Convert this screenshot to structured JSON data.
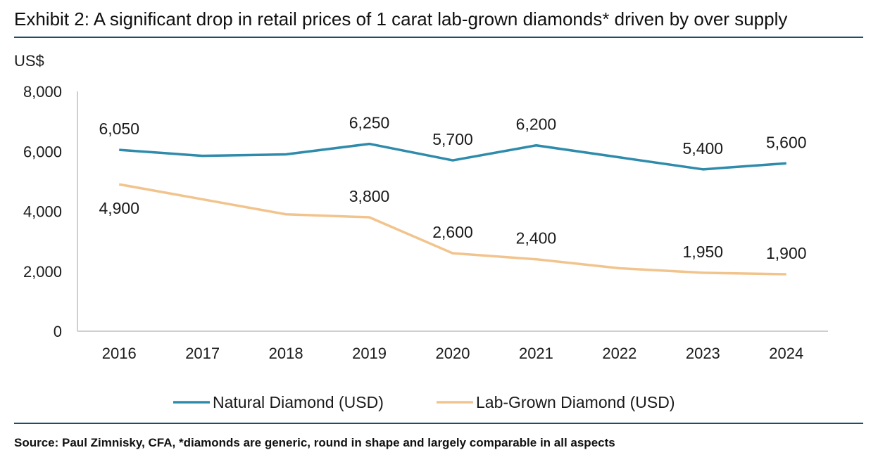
{
  "title": "Exhibit 2: A significant drop in retail prices of 1 carat lab-grown diamonds* driven by over supply",
  "source": "Source: Paul Zimnisky, CFA, *diamonds are generic, round in shape and largely comparable in all aspects",
  "colors": {
    "natural": "#2e8bab",
    "lab": "#f2c48d",
    "rule": "#1d4e63",
    "axis": "#bfbfbf"
  },
  "chart_data": {
    "type": "line",
    "title": "Exhibit 2: A significant drop in retail prices of 1 carat lab-grown diamonds* driven by over supply",
    "xlabel": "",
    "ylabel": "US$",
    "ylim": [
      0,
      8000
    ],
    "yticks": [
      "0",
      "2,000",
      "4,000",
      "6,000",
      "8,000"
    ],
    "yticks_values": [
      0,
      2000,
      4000,
      6000,
      8000
    ],
    "categories": [
      "2016",
      "2017",
      "2018",
      "2019",
      "2020",
      "2021",
      "2022",
      "2023",
      "2024"
    ],
    "grid": false,
    "legend": "bottom",
    "series": [
      {
        "name": "Natural Diamond (USD)",
        "color": "#2e8bab",
        "values": [
          6050,
          5850,
          5900,
          6250,
          5700,
          6200,
          5800,
          5400,
          5600
        ],
        "labels": [
          "6,050",
          "",
          "",
          "6,250",
          "5,700",
          "6,200",
          "",
          "5,400",
          "5,600"
        ]
      },
      {
        "name": "Lab-Grown Diamond (USD)",
        "color": "#f2c48d",
        "values": [
          4900,
          4400,
          3900,
          3800,
          2600,
          2400,
          2100,
          1950,
          1900
        ],
        "labels": [
          "4,900",
          "",
          "",
          "3,800",
          "2,600",
          "2,400",
          "",
          "1,950",
          "1,900"
        ]
      }
    ]
  }
}
